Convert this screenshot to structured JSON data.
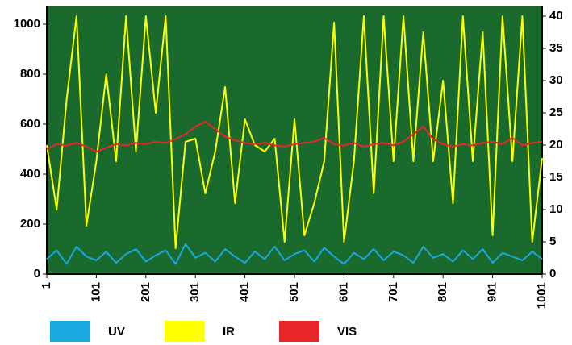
{
  "chart_data": {
    "type": "line",
    "x": [
      1,
      21,
      41,
      61,
      81,
      101,
      121,
      141,
      161,
      181,
      201,
      221,
      241,
      261,
      281,
      301,
      321,
      341,
      361,
      381,
      401,
      421,
      441,
      461,
      481,
      501,
      521,
      541,
      561,
      581,
      601,
      621,
      641,
      661,
      681,
      701,
      721,
      741,
      761,
      781,
      801,
      821,
      841,
      861,
      881,
      901,
      921,
      941,
      961,
      981,
      1001
    ],
    "xlim": [
      1,
      1001
    ],
    "xticks": [
      1,
      101,
      201,
      301,
      401,
      501,
      601,
      701,
      801,
      901,
      1001
    ],
    "ylim": [
      0,
      1071
    ],
    "yticks": [
      0,
      200,
      400,
      600,
      800,
      1000
    ],
    "y2lim": [
      0,
      41.5
    ],
    "y2ticks": [
      0,
      5,
      10,
      15,
      20,
      25,
      30,
      35,
      40
    ],
    "background": "#196a2c",
    "legend": "bottom-left",
    "series": [
      {
        "name": "UV",
        "color": "#1aa8e0",
        "values": [
          60,
          95,
          40,
          110,
          70,
          55,
          90,
          45,
          80,
          100,
          50,
          75,
          95,
          40,
          120,
          65,
          85,
          50,
          100,
          70,
          45,
          90,
          60,
          110,
          55,
          80,
          95,
          50,
          105,
          70,
          40,
          85,
          60,
          100,
          55,
          90,
          75,
          45,
          110,
          65,
          80,
          50,
          95,
          60,
          100,
          45,
          85,
          70,
          55,
          90,
          60
        ]
      },
      {
        "name": "IR",
        "color": "#ffff00",
        "axis": "y2",
        "values": [
          20,
          10,
          27,
          40,
          7.5,
          17.5,
          31,
          17.5,
          40,
          19,
          40,
          25,
          40,
          4,
          20.5,
          21,
          12.5,
          19,
          29,
          11,
          24,
          20,
          19,
          21,
          5,
          24,
          6,
          11,
          17.5,
          39,
          5,
          17.5,
          40,
          12.5,
          40,
          17.5,
          40,
          17.5,
          37.5,
          17.5,
          30,
          11,
          40,
          17.5,
          37.5,
          6,
          40,
          17.5,
          40,
          5,
          18
        ]
      },
      {
        "name": "VIS",
        "color": "#e8262a",
        "values": [
          500,
          520,
          515,
          525,
          510,
          490,
          505,
          520,
          515,
          525,
          520,
          530,
          525,
          540,
          560,
          590,
          610,
          580,
          550,
          535,
          525,
          520,
          525,
          515,
          510,
          520,
          525,
          530,
          545,
          520,
          515,
          525,
          510,
          520,
          525,
          515,
          530,
          560,
          590,
          540,
          520,
          510,
          520,
          515,
          525,
          530,
          520,
          545,
          515,
          525,
          530
        ]
      }
    ]
  }
}
